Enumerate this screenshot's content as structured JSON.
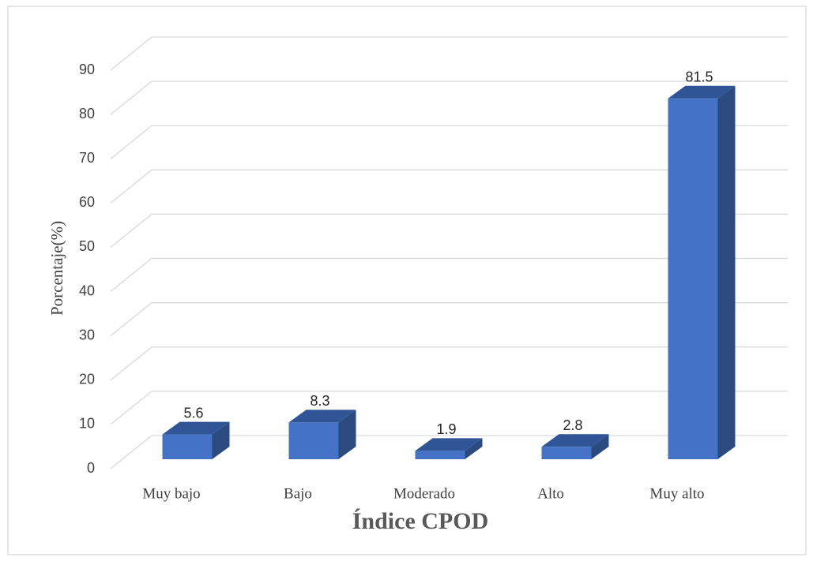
{
  "chart_data": {
    "type": "bar3d",
    "x_label": "Índice CPOD",
    "y_label": "Porcentaje(%)",
    "categories": [
      "Muy bajo",
      "Bajo",
      "Moderado",
      "Alto",
      "Muy alto"
    ],
    "values": [
      5.6,
      8.3,
      1.9,
      2.8,
      81.5
    ],
    "color": "#4472c4",
    "ylim": [
      0,
      90
    ],
    "yticks": [
      0,
      10,
      20,
      30,
      40,
      50,
      60,
      70,
      80,
      90
    ],
    "grid": true
  }
}
